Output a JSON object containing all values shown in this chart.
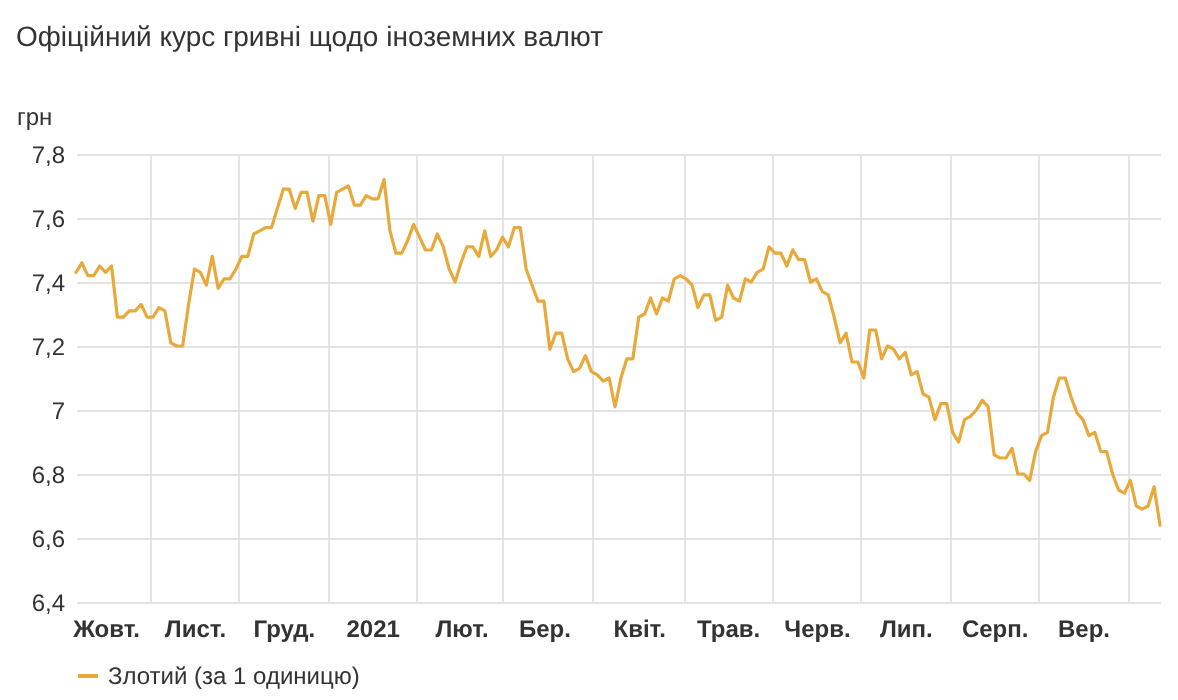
{
  "chart_data": {
    "type": "line",
    "title": "Офіційний курс гривні щодо іноземних валют",
    "ylabel": "грн",
    "categories": [
      null,
      null,
      null,
      null,
      null,
      "Жовт.",
      null,
      null,
      null,
      null,
      null,
      null,
      null,
      null,
      null,
      null,
      null,
      null,
      null,
      null,
      "Лист.",
      null,
      null,
      null,
      null,
      null,
      null,
      null,
      null,
      null,
      null,
      null,
      null,
      null,
      null,
      "Груд.",
      null,
      null,
      null,
      null,
      null,
      null,
      null,
      null,
      null,
      null,
      null,
      null,
      null,
      null,
      "2021",
      null,
      null,
      null,
      null,
      null,
      null,
      null,
      null,
      null,
      null,
      null,
      null,
      null,
      null,
      "Лют.",
      null,
      null,
      null,
      null,
      null,
      null,
      null,
      null,
      null,
      null,
      null,
      null,
      null,
      "Бер.",
      null,
      null,
      null,
      null,
      null,
      null,
      null,
      null,
      null,
      null,
      null,
      null,
      null,
      null,
      null,
      "Квіт.",
      null,
      null,
      null,
      null,
      null,
      null,
      null,
      null,
      null,
      null,
      null,
      null,
      null,
      null,
      "Трав.",
      null,
      null,
      null,
      null,
      null,
      null,
      null,
      null,
      null,
      null,
      null,
      null,
      null,
      null,
      "Черв.",
      null,
      null,
      null,
      null,
      null,
      null,
      null,
      null,
      null,
      null,
      null,
      null,
      null,
      null,
      "Лип.",
      null,
      null,
      null,
      null,
      null,
      null,
      null,
      null,
      null,
      null,
      null,
      null,
      null,
      null,
      "Серп.",
      null,
      null,
      null,
      null,
      null,
      null,
      null,
      null,
      null,
      null,
      null,
      null,
      null,
      null,
      "Вер.",
      null,
      null,
      null,
      null,
      null,
      null,
      null,
      null,
      null,
      null,
      null,
      null,
      null
    ],
    "ylim": [
      6.4,
      7.8
    ],
    "yticks": [
      {
        "value": 6.4,
        "label": "6,4"
      },
      {
        "value": 6.6,
        "label": "6,6"
      },
      {
        "value": 6.8,
        "label": "6,8"
      },
      {
        "value": 7,
        "label": "7"
      },
      {
        "value": 7.2,
        "label": "7,2"
      },
      {
        "value": 7.4,
        "label": "7,4"
      },
      {
        "value": 7.6,
        "label": "7,6"
      },
      {
        "value": 7.8,
        "label": "7,8"
      }
    ],
    "grid": true,
    "legend": "bottom",
    "series": [
      {
        "name": "Злотий (за 1 одиницю)",
        "color": "#e8a93a",
        "values": [
          7.43,
          7.46,
          7.42,
          7.42,
          7.45,
          7.43,
          7.45,
          7.29,
          7.29,
          7.31,
          7.31,
          7.33,
          7.29,
          7.29,
          7.32,
          7.31,
          7.21,
          7.2,
          7.2,
          7.33,
          7.44,
          7.43,
          7.39,
          7.48,
          7.38,
          7.41,
          7.41,
          7.44,
          7.48,
          7.48,
          7.55,
          7.56,
          7.57,
          7.57,
          7.63,
          7.69,
          7.69,
          7.63,
          7.68,
          7.68,
          7.59,
          7.67,
          7.67,
          7.58,
          7.68,
          7.69,
          7.7,
          7.64,
          7.64,
          7.67,
          7.66,
          7.66,
          7.72,
          7.56,
          7.49,
          7.49,
          7.53,
          7.58,
          7.54,
          7.5,
          7.5,
          7.55,
          7.51,
          7.44,
          7.4,
          7.46,
          7.51,
          7.51,
          7.48,
          7.56,
          7.48,
          7.5,
          7.54,
          7.51,
          7.57,
          7.57,
          7.44,
          7.39,
          7.34,
          7.34,
          7.19,
          7.24,
          7.24,
          7.16,
          7.12,
          7.13,
          7.17,
          7.12,
          7.11,
          7.09,
          7.1,
          7.01,
          7.1,
          7.16,
          7.16,
          7.29,
          7.3,
          7.35,
          7.3,
          7.35,
          7.34,
          7.41,
          7.42,
          7.41,
          7.39,
          7.32,
          7.36,
          7.36,
          7.28,
          7.29,
          7.39,
          7.35,
          7.34,
          7.41,
          7.4,
          7.43,
          7.44,
          7.51,
          7.49,
          7.49,
          7.45,
          7.5,
          7.47,
          7.47,
          7.4,
          7.41,
          7.37,
          7.36,
          7.29,
          7.21,
          7.24,
          7.15,
          7.15,
          7.1,
          7.25,
          7.25,
          7.16,
          7.2,
          7.19,
          7.16,
          7.18,
          7.11,
          7.12,
          7.05,
          7.04,
          6.97,
          7.02,
          7.02,
          6.93,
          6.9,
          6.97,
          6.98,
          7.0,
          7.03,
          7.01,
          6.86,
          6.85,
          6.85,
          6.88,
          6.8,
          6.8,
          6.78,
          6.87,
          6.92,
          6.93,
          7.04,
          7.1,
          7.1,
          7.04,
          6.99,
          6.97,
          6.92,
          6.93,
          6.87,
          6.87,
          6.8,
          6.75,
          6.74,
          6.78,
          6.7,
          6.69,
          6.7,
          6.76,
          6.64
        ]
      }
    ]
  }
}
